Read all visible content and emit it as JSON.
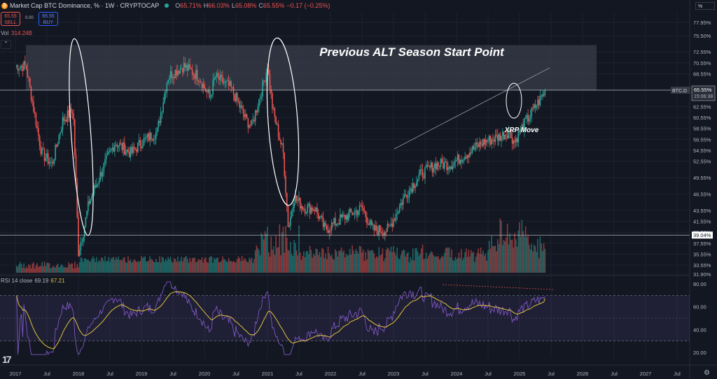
{
  "header": {
    "title": "Market Cap BTC Dominance, %",
    "interval": "1W",
    "exchange": "CRYPTOCAP",
    "ohlc": [
      {
        "k": "O",
        "v": "65.71%"
      },
      {
        "k": "H",
        "v": "66.03%"
      },
      {
        "k": "L",
        "v": "65.08%"
      },
      {
        "k": "C",
        "v": "65.55%"
      },
      {
        "k": "",
        "v": "−0.17 (−0.25%)"
      }
    ],
    "sell_price": "65.55",
    "sell_label": "SELL",
    "buy_price": "65.55",
    "buy_label": "BUY",
    "spread": "0.00",
    "vol_label": "Vol",
    "vol_value": "314.24B",
    "rsi_label": "RSI 14 close",
    "rsi_value": "69.19",
    "rsi_ma_value": "67.21",
    "percent_button": "%"
  },
  "chart_data": {
    "type": "candlestick",
    "symbol": "BTC.D",
    "timeframe": "1W",
    "x_axis_ticks": [
      "2017",
      "Jul",
      "2018",
      "Jul",
      "2019",
      "Jul",
      "2020",
      "Jul",
      "2021",
      "Jul",
      "2022",
      "Jul",
      "2023",
      "Jul",
      "2024",
      "Jul",
      "2025",
      "Jul",
      "2026",
      "Jul",
      "2027",
      "Jul"
    ],
    "y_axis_ticks": [
      "77.95%",
      "75.50%",
      "72.55%",
      "70.55%",
      "68.55%",
      "65.55%",
      "62.55%",
      "60.55%",
      "58.55%",
      "56.55%",
      "54.55%",
      "52.55%",
      "49.55%",
      "46.55%",
      "43.55%",
      "41.55%",
      "39.55%",
      "37.55%",
      "35.55%",
      "33.55%",
      "31.90%"
    ],
    "ylim": [
      31.9,
      77.95
    ],
    "price_tag": {
      "symbol": "BTC.D",
      "value": "65.55%",
      "countdown": "15:06:38"
    },
    "support_line": {
      "value": "39.04%"
    },
    "annotations": [
      {
        "text": "Previous ALT Season Start Point",
        "zone": [
          65.55,
          73.8
        ]
      },
      {
        "text": "XRP Move"
      }
    ],
    "price_path": [
      [
        "2017-01",
        70
      ],
      [
        "2017-03",
        70
      ],
      [
        "2017-06",
        54
      ],
      [
        "2017-08",
        52
      ],
      [
        "2017-10",
        60
      ],
      [
        "2017-12",
        62
      ],
      [
        "2018-01",
        36
      ],
      [
        "2018-02",
        40
      ],
      [
        "2018-03",
        45
      ],
      [
        "2018-06",
        52
      ],
      [
        "2018-08",
        56
      ],
      [
        "2018-11",
        54
      ],
      [
        "2019-01",
        56
      ],
      [
        "2019-04",
        58
      ],
      [
        "2019-06",
        68
      ],
      [
        "2019-09",
        70
      ],
      [
        "2019-12",
        68
      ],
      [
        "2020-02",
        64
      ],
      [
        "2020-03",
        68
      ],
      [
        "2020-06",
        66
      ],
      [
        "2020-09",
        60
      ],
      [
        "2020-10",
        59
      ],
      [
        "2020-12",
        66
      ],
      [
        "2021-01",
        70
      ],
      [
        "2021-02",
        62
      ],
      [
        "2021-04",
        54
      ],
      [
        "2021-05",
        40
      ],
      [
        "2021-06",
        46
      ],
      [
        "2021-08",
        44
      ],
      [
        "2021-10",
        44
      ],
      [
        "2021-12",
        40
      ],
      [
        "2022-03",
        42
      ],
      [
        "2022-07",
        44
      ],
      [
        "2022-09",
        40
      ],
      [
        "2022-12",
        40
      ],
      [
        "2023-03",
        46
      ],
      [
        "2023-06",
        50
      ],
      [
        "2023-09",
        52
      ],
      [
        "2023-12",
        52
      ],
      [
        "2024-03",
        54
      ],
      [
        "2024-06",
        56
      ],
      [
        "2024-09",
        57
      ],
      [
        "2024-11",
        58
      ],
      [
        "2024-12",
        56
      ],
      [
        "2025-01",
        58
      ],
      [
        "2025-03",
        61
      ],
      [
        "2025-05",
        64
      ],
      [
        "2025-06",
        65.55
      ]
    ],
    "rsi": {
      "label": "RSI 14 close",
      "ticks": [
        "80.00",
        "60.00",
        "40.00",
        "20.00"
      ],
      "ylim": [
        15,
        85
      ],
      "band": [
        30,
        70
      ],
      "last": 69.19,
      "ma_last": 67.21
    }
  },
  "colors": {
    "bg": "#131722",
    "up": "#26a69a",
    "down": "#ef5350",
    "rsi_line": "#7e57c2",
    "rsi_ma": "#e0c341",
    "grid": "#1e222d",
    "zone": "#2a2e39"
  },
  "icons": [
    "bitcoin-icon",
    "tradingview-logo-icon",
    "settings-icon",
    "collapse-chevron-icon"
  ]
}
